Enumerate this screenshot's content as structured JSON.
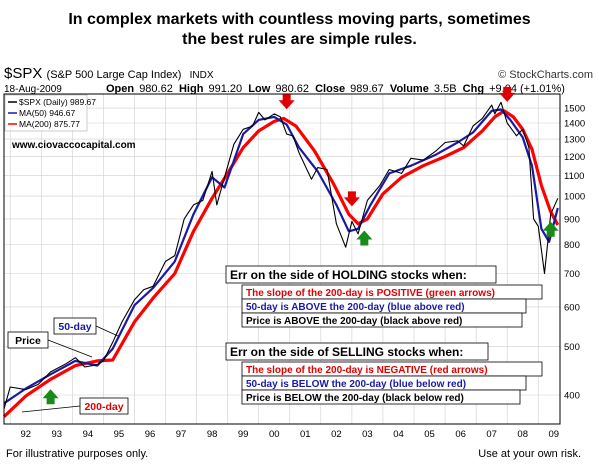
{
  "headline": {
    "line1": "In complex markets with countless moving parts, sometimes",
    "line2": "the best rules are simple rules."
  },
  "header": {
    "symbol": "$SPX",
    "name": "(S&P 500 Large Cap Index)",
    "index_tag": "INDX",
    "brand": "© StockCharts.com",
    "date": "18-Aug-2009",
    "open_label": "Open",
    "open": "980.62",
    "high_label": "High",
    "high": "991.20",
    "low_label": "Low",
    "low": "980.62",
    "close_label": "Close",
    "close": "989.67",
    "volume_label": "Volume",
    "volume": "3.5B",
    "chg_label": "Chg",
    "chg": "+9.04 (+1.01%)"
  },
  "legend": {
    "price": "$SPX (Daily) 989.67",
    "ma50": "MA(50) 946.67",
    "ma200": "MA(200) 875.77"
  },
  "website": "www.ciovaccocapital.com",
  "labels": {
    "price": "Price",
    "ma50": "50-day",
    "ma200": "200-day"
  },
  "holding_box": {
    "title": "Err on the side of HOLDING stocks when:",
    "line1": "The slope of the 200-day is POSITIVE (green arrows)",
    "line2": "50-day is ABOVE the 200-day (blue above red)",
    "line3": "Price is ABOVE the 200-day (black above red)"
  },
  "selling_box": {
    "title": "Err on the side of SELLING stocks when:",
    "line1": "The slope of the 200-day is NEGATIVE (red arrows)",
    "line2": "50-day is BELOW the 200-day (blue below red)",
    "line3": "Price is BELOW the 200-day (black below red)"
  },
  "footer": {
    "left": "For illustrative purposes only.",
    "right": "Use at your own risk."
  },
  "colors": {
    "price": "#000000",
    "ma50": "#1a1aa6",
    "ma200": "#ff0000",
    "grid": "#cfcfcf",
    "title_red": "#e00000",
    "blue_text": "#1a1aa6",
    "arrow_green": "#1a8a1a",
    "arrow_red": "#e00000"
  },
  "chart_data": {
    "type": "line",
    "y_scale": "log",
    "ylim": [
      350,
      1600
    ],
    "yticks": [
      400,
      500,
      600,
      700,
      800,
      900,
      1000,
      1100,
      1200,
      1300,
      1400,
      1500
    ],
    "ytick_labels": [
      "400",
      "500",
      "600",
      "700",
      "800",
      "900",
      "1000",
      "1100",
      "1200",
      "1300",
      "1400",
      "1500"
    ],
    "xlim": [
      1991.8,
      2009.7
    ],
    "xticks": [
      1992,
      1993,
      1994,
      1995,
      1996,
      1997,
      1998,
      1999,
      2000,
      2001,
      2002,
      2003,
      2004,
      2005,
      2006,
      2007,
      2008,
      2009
    ],
    "xtick_labels": [
      "92",
      "93",
      "94",
      "95",
      "96",
      "97",
      "98",
      "99",
      "00",
      "01",
      "02",
      "03",
      "04",
      "05",
      "06",
      "07",
      "08",
      "09"
    ],
    "grid": true,
    "series": [
      {
        "name": "$SPX (Daily)",
        "x": [
          1991.8,
          1992.0,
          1992.5,
          1992.9,
          1993.3,
          1993.8,
          1994.1,
          1994.4,
          1994.8,
          1995.0,
          1995.3,
          1995.6,
          1996.0,
          1996.3,
          1996.6,
          1997.0,
          1997.3,
          1997.6,
          1997.9,
          1998.2,
          1998.5,
          1998.65,
          1998.9,
          1999.2,
          1999.5,
          1999.8,
          2000.0,
          2000.2,
          2000.5,
          2000.7,
          2000.9,
          2001.1,
          2001.3,
          2001.7,
          2001.9,
          2002.2,
          2002.5,
          2002.8,
          2003.0,
          2003.2,
          2003.5,
          2003.9,
          2004.2,
          2004.6,
          2004.9,
          2005.3,
          2005.7,
          2006.0,
          2006.4,
          2006.6,
          2006.9,
          2007.2,
          2007.5,
          2007.6,
          2007.8,
          2008.0,
          2008.3,
          2008.5,
          2008.7,
          2008.85,
          2009.0,
          2009.2,
          2009.4,
          2009.63
        ],
        "values": [
          375,
          415,
          410,
          420,
          445,
          462,
          475,
          455,
          460,
          468,
          510,
          560,
          620,
          650,
          660,
          740,
          760,
          900,
          960,
          980,
          1120,
          960,
          1090,
          1270,
          1360,
          1380,
          1470,
          1420,
          1460,
          1440,
          1330,
          1320,
          1220,
          1080,
          1140,
          1130,
          880,
          790,
          890,
          840,
          980,
          1050,
          1130,
          1110,
          1190,
          1180,
          1230,
          1280,
          1290,
          1260,
          1380,
          1430,
          1520,
          1460,
          1540,
          1400,
          1320,
          1360,
          1250,
          900,
          870,
          700,
          920,
          989.67
        ]
      },
      {
        "name": "MA(50)",
        "x": [
          1991.8,
          1992.5,
          1993.3,
          1994.1,
          1994.8,
          1995.3,
          1996.0,
          1996.6,
          1997.3,
          1997.9,
          1998.5,
          1998.9,
          1999.5,
          2000.0,
          2000.5,
          2000.9,
          2001.3,
          2001.9,
          2002.5,
          2002.9,
          2003.2,
          2003.6,
          2004.2,
          2004.9,
          2005.7,
          2006.4,
          2006.9,
          2007.5,
          2007.8,
          2008.1,
          2008.5,
          2008.8,
          2009.1,
          2009.35,
          2009.63
        ],
        "values": [
          385,
          412,
          440,
          468,
          458,
          495,
          605,
          655,
          740,
          920,
          1090,
          1040,
          1330,
          1420,
          1440,
          1390,
          1250,
          1120,
          960,
          850,
          860,
          960,
          1110,
          1150,
          1210,
          1280,
          1340,
          1480,
          1490,
          1420,
          1310,
          1150,
          860,
          810,
          946.67
        ]
      },
      {
        "name": "MA(200)",
        "x": [
          1991.8,
          1992.5,
          1993.3,
          1994.1,
          1994.8,
          1995.3,
          1996.0,
          1996.6,
          1997.3,
          1997.9,
          1998.5,
          1999.0,
          1999.5,
          2000.0,
          2000.5,
          2000.8,
          2001.2,
          2001.8,
          2002.4,
          2002.9,
          2003.2,
          2003.5,
          2004.0,
          2004.6,
          2005.3,
          2006.0,
          2006.6,
          2007.2,
          2007.6,
          2007.9,
          2008.2,
          2008.5,
          2008.8,
          2009.1,
          2009.4,
          2009.63
        ],
        "values": [
          362,
          398,
          430,
          458,
          468,
          470,
          560,
          625,
          700,
          850,
          990,
          1110,
          1250,
          1350,
          1410,
          1430,
          1380,
          1230,
          1060,
          920,
          880,
          900,
          1010,
          1090,
          1150,
          1200,
          1250,
          1350,
          1440,
          1480,
          1440,
          1360,
          1240,
          1050,
          930,
          875.77
        ]
      }
    ],
    "arrows": {
      "red_down": [
        2000.9,
        2003.0,
        2008.0
      ],
      "green_up": [
        1993.3,
        2003.4,
        2009.4
      ]
    }
  }
}
